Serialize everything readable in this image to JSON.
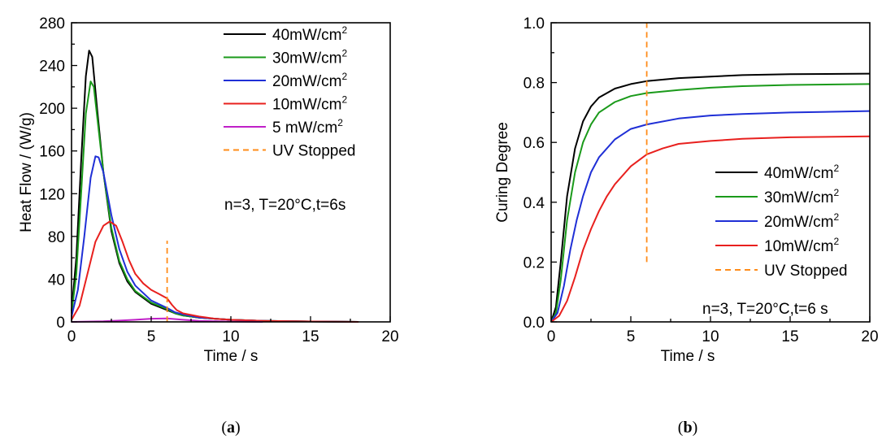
{
  "chart_data": [
    {
      "type": "line",
      "panel_label": "a",
      "xlabel": "Time / s",
      "ylabel": "Heat Flow / (W/g)",
      "xlim": [
        0,
        20
      ],
      "ylim": [
        0,
        280
      ],
      "xticks": [
        0,
        5,
        10,
        15,
        20
      ],
      "yticks": [
        0,
        40,
        80,
        120,
        160,
        200,
        240,
        280
      ],
      "legend_position": "top-right",
      "annotation": "n=3, T=20°C,t=6s",
      "series": [
        {
          "name": "40mW/cm2",
          "color": "#000000",
          "x": [
            0,
            0.3,
            0.6,
            0.9,
            1.1,
            1.3,
            1.6,
            2.0,
            2.5,
            3.0,
            3.5,
            4.0,
            5.0,
            6.0,
            6.5,
            7.0,
            8.0,
            9.0,
            10.0,
            12.0,
            14.0,
            16.0,
            18.0
          ],
          "y": [
            10,
            60,
            150,
            230,
            254,
            248,
            200,
            140,
            85,
            55,
            38,
            28,
            17,
            11,
            8,
            6,
            4,
            3,
            2,
            1,
            0.5,
            0.3,
            0
          ]
        },
        {
          "name": "30mW/cm2",
          "color": "#1a9a1a",
          "x": [
            0,
            0.3,
            0.6,
            0.9,
            1.2,
            1.4,
            1.7,
            2.0,
            2.5,
            3.0,
            3.5,
            4.0,
            5.0,
            6.0,
            6.5,
            7.0,
            8.0,
            9.0,
            10.0,
            12.0,
            14.0,
            16.0,
            18.0
          ],
          "y": [
            8,
            45,
            120,
            195,
            225,
            220,
            180,
            140,
            88,
            57,
            40,
            29,
            18,
            12,
            8,
            6,
            4,
            3,
            2,
            1,
            0.5,
            0.3,
            0
          ]
        },
        {
          "name": "20mW/cm2",
          "color": "#1f2fd6",
          "x": [
            0,
            0.4,
            0.8,
            1.2,
            1.5,
            1.7,
            2.0,
            2.5,
            3.0,
            3.5,
            4.0,
            5.0,
            6.0,
            6.5,
            7.0,
            8.0,
            9.0,
            10.0,
            12.0,
            14.0,
            16.0,
            18.0
          ],
          "y": [
            5,
            30,
            80,
            135,
            155,
            154,
            140,
            100,
            68,
            47,
            34,
            20,
            13,
            9,
            7,
            4,
            3,
            2,
            1,
            0.5,
            0.3,
            0
          ]
        },
        {
          "name": "10mW/cm2",
          "color": "#e8201e",
          "x": [
            0,
            0.5,
            1.0,
            1.5,
            2.0,
            2.4,
            2.8,
            3.2,
            3.6,
            4.0,
            4.5,
            5.0,
            5.5,
            6.0,
            6.3,
            6.6,
            7.0,
            8.0,
            9.0,
            10.0,
            12.0,
            14.0,
            16.0,
            18.0
          ],
          "y": [
            2,
            15,
            45,
            75,
            90,
            94,
            90,
            75,
            58,
            45,
            36,
            30,
            26,
            22,
            16,
            11,
            8,
            5,
            3,
            2,
            1,
            0.5,
            0.3,
            0
          ]
        },
        {
          "name": "5  mW/cm2",
          "color": "#c020c8",
          "x": [
            0,
            2,
            3,
            4,
            5,
            6,
            7,
            8,
            10,
            12
          ],
          "y": [
            0,
            0.5,
            1.2,
            2.0,
            3.0,
            3.2,
            2.0,
            1.0,
            0.3,
            0
          ]
        },
        {
          "name": "UV Stopped",
          "color": "#ff8c1a",
          "dashed": true,
          "x": [
            6,
            6
          ],
          "y": [
            0,
            76
          ]
        }
      ]
    },
    {
      "type": "line",
      "panel_label": "b",
      "xlabel": "Time / s",
      "ylabel": "Curing Degree",
      "xlim": [
        0,
        20
      ],
      "ylim": [
        0,
        1.0
      ],
      "xticks": [
        0,
        5,
        10,
        15,
        20
      ],
      "yticks": [
        0.0,
        0.2,
        0.4,
        0.6,
        0.8,
        1.0
      ],
      "legend_position": "bottom-right",
      "annotation": "n=3, T=20°C,t=6 s",
      "series": [
        {
          "name": "40mW/cm2",
          "color": "#000000",
          "x": [
            0,
            0.3,
            0.6,
            1.0,
            1.5,
            2.0,
            2.5,
            3.0,
            4.0,
            5.0,
            6.0,
            8.0,
            10.0,
            12.0,
            15.0,
            20.0
          ],
          "y": [
            0,
            0.05,
            0.2,
            0.42,
            0.58,
            0.67,
            0.72,
            0.75,
            0.78,
            0.795,
            0.805,
            0.815,
            0.82,
            0.825,
            0.828,
            0.83
          ]
        },
        {
          "name": "30mW/cm2",
          "color": "#1a9a1a",
          "x": [
            0,
            0.3,
            0.6,
            1.0,
            1.5,
            2.0,
            2.5,
            3.0,
            4.0,
            5.0,
            6.0,
            8.0,
            10.0,
            12.0,
            15.0,
            20.0
          ],
          "y": [
            0,
            0.03,
            0.14,
            0.34,
            0.5,
            0.6,
            0.66,
            0.7,
            0.735,
            0.755,
            0.765,
            0.775,
            0.783,
            0.788,
            0.792,
            0.795
          ]
        },
        {
          "name": "20mW/cm2",
          "color": "#1f2fd6",
          "x": [
            0,
            0.4,
            0.8,
            1.2,
            1.6,
            2.0,
            2.5,
            3.0,
            4.0,
            5.0,
            6.0,
            8.0,
            10.0,
            12.0,
            15.0,
            20.0
          ],
          "y": [
            0,
            0.03,
            0.12,
            0.24,
            0.34,
            0.42,
            0.5,
            0.55,
            0.61,
            0.645,
            0.66,
            0.68,
            0.69,
            0.695,
            0.7,
            0.705
          ]
        },
        {
          "name": "10mW/cm2",
          "color": "#e8201e",
          "x": [
            0,
            0.5,
            1.0,
            1.5,
            2.0,
            2.5,
            3.0,
            3.5,
            4.0,
            5.0,
            6.0,
            7.0,
            8.0,
            10.0,
            12.0,
            15.0,
            20.0
          ],
          "y": [
            0,
            0.02,
            0.07,
            0.15,
            0.24,
            0.31,
            0.37,
            0.42,
            0.46,
            0.52,
            0.56,
            0.58,
            0.595,
            0.605,
            0.612,
            0.617,
            0.62
          ]
        },
        {
          "name": "UV Stopped",
          "color": "#ff8c1a",
          "dashed": true,
          "x": [
            6,
            6
          ],
          "y": [
            0.2,
            1.0
          ]
        }
      ]
    }
  ],
  "captions": {
    "a": "a",
    "b": "b"
  }
}
